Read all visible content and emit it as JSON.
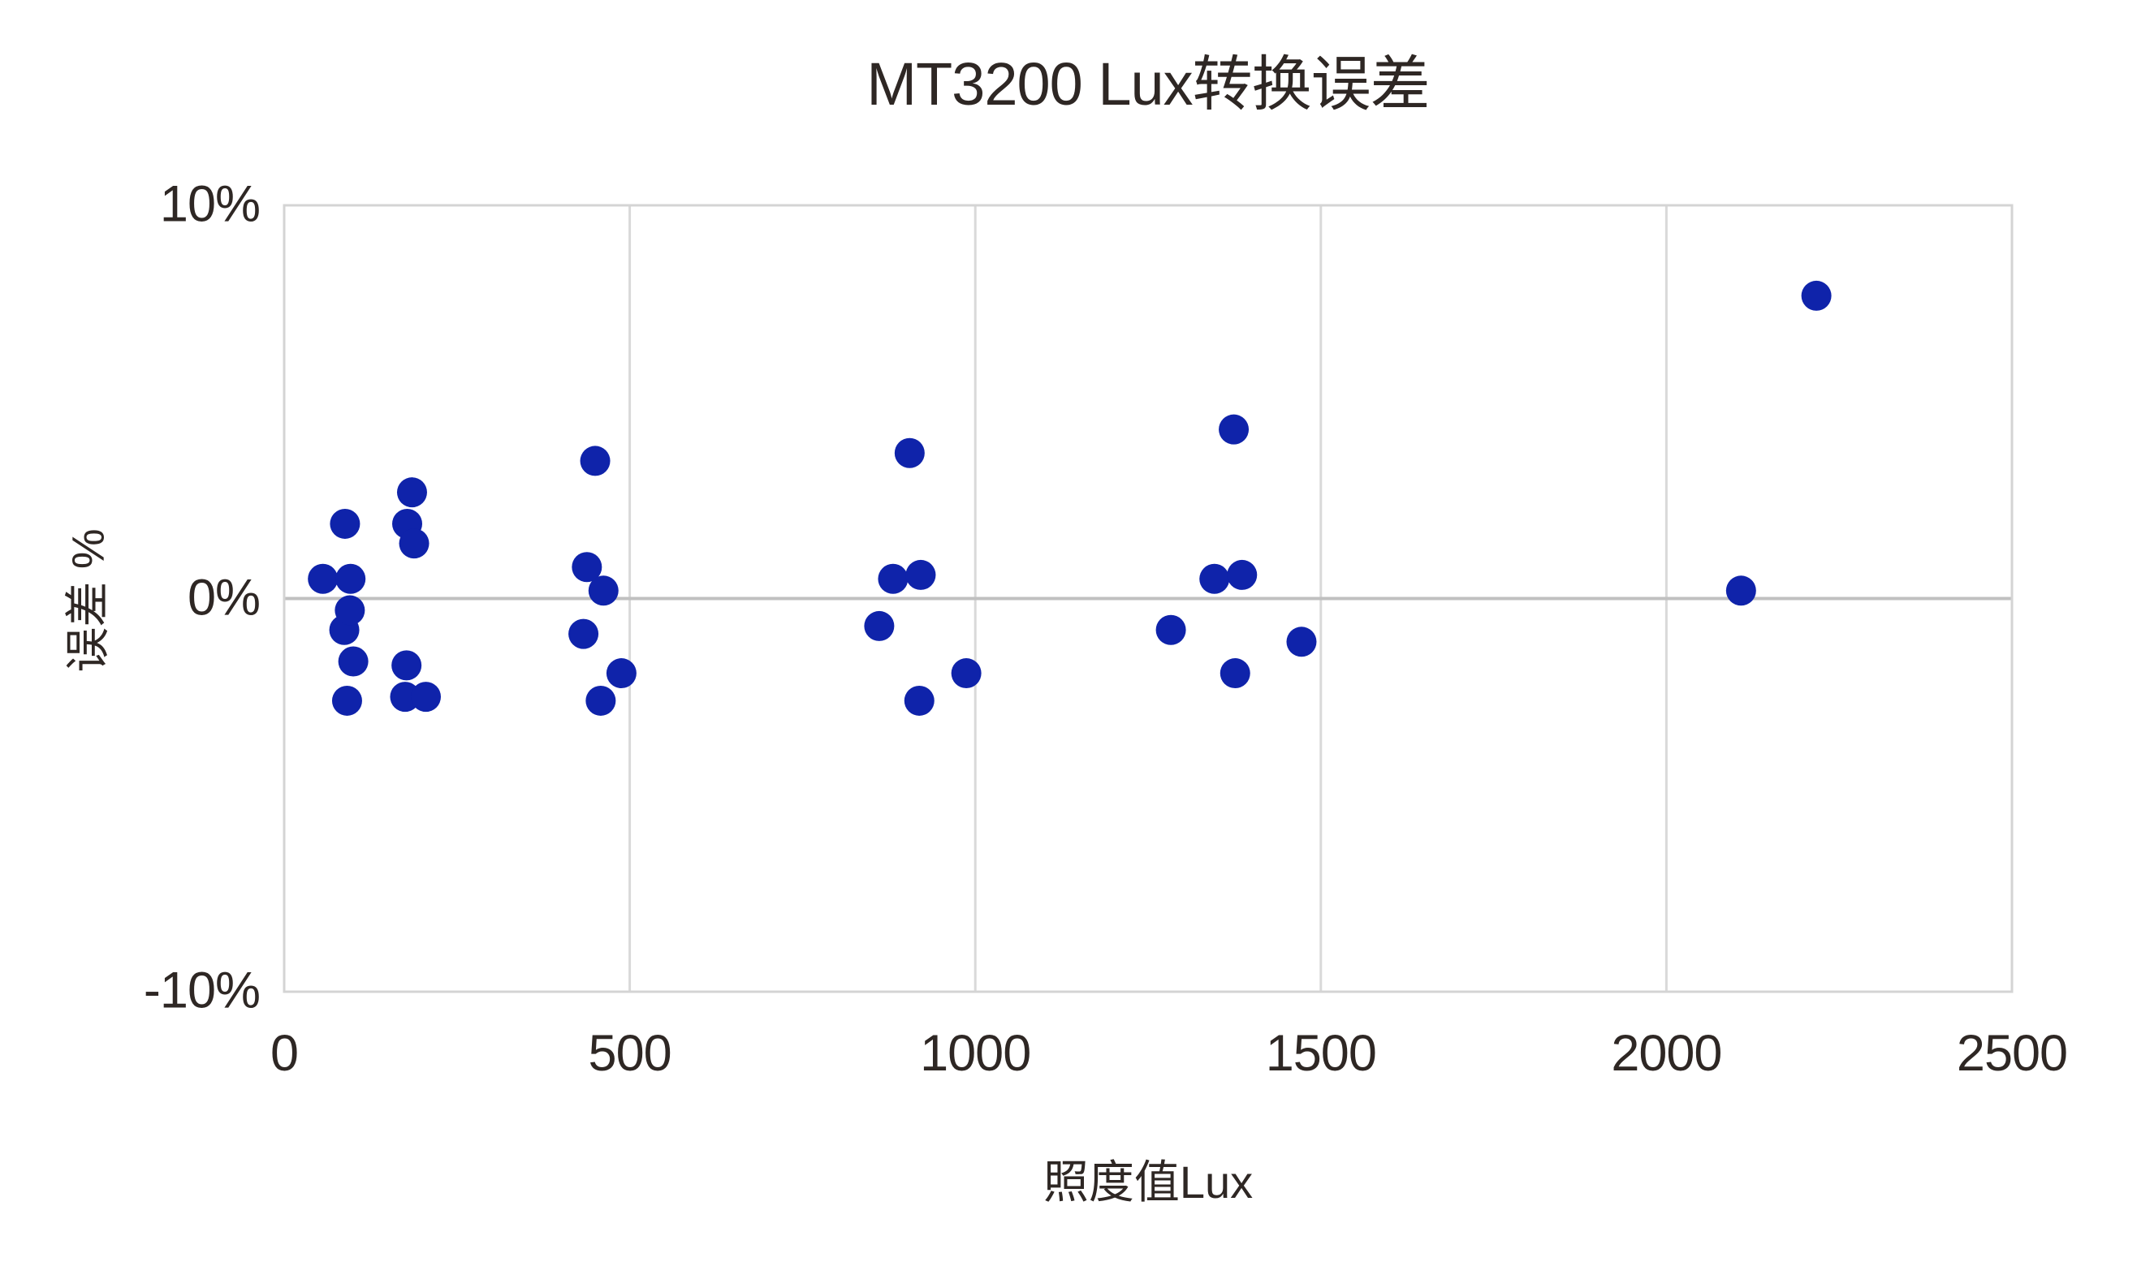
{
  "colors": {
    "text": "#2e2724",
    "grid": "#d9d9d9",
    "border": "#d4d4d4",
    "zero": "#c0c0c0",
    "point": "#0f23aa",
    "bg": "#ffffff"
  },
  "chart_data": {
    "type": "scatter",
    "title": "MT3200 Lux转换误差",
    "xlabel": "照度值Lux",
    "ylabel": "误差 %",
    "xlim": [
      0,
      2500
    ],
    "ylim": [
      -10,
      10
    ],
    "grid": {
      "x_gridlines": [
        500,
        1000,
        1500,
        2000
      ],
      "y_gridlines": [
        0
      ],
      "border": true
    },
    "x_ticks": [
      {
        "value": 0,
        "label": "0"
      },
      {
        "value": 500,
        "label": "500"
      },
      {
        "value": 1000,
        "label": "1000"
      },
      {
        "value": 1500,
        "label": "1500"
      },
      {
        "value": 2000,
        "label": "2000"
      },
      {
        "value": 2500,
        "label": "2500"
      }
    ],
    "y_ticks": [
      {
        "value": 10,
        "label": "10%"
      },
      {
        "value": 0,
        "label": "0%"
      },
      {
        "value": -10,
        "label": "-10%"
      }
    ],
    "series": [
      {
        "name": "误差 %",
        "color": "#0f23aa",
        "marker": "circle",
        "marker_radius_px": 18.5,
        "points": [
          [
            56,
            0.5
          ],
          [
            87,
            -0.8
          ],
          [
            88,
            1.9
          ],
          [
            91,
            -2.6
          ],
          [
            95,
            -0.3
          ],
          [
            96,
            0.5
          ],
          [
            100,
            -1.6
          ],
          [
            175,
            -2.5
          ],
          [
            177,
            -1.7
          ],
          [
            178,
            1.9
          ],
          [
            185,
            2.7
          ],
          [
            188,
            1.4
          ],
          [
            205,
            -2.5
          ],
          [
            433,
            -0.9
          ],
          [
            438,
            0.8
          ],
          [
            450,
            3.5
          ],
          [
            458,
            -2.6
          ],
          [
            462,
            0.2
          ],
          [
            488,
            -1.9
          ],
          [
            861,
            -0.7
          ],
          [
            881,
            0.5
          ],
          [
            905,
            3.7
          ],
          [
            919,
            -2.6
          ],
          [
            921,
            0.6
          ],
          [
            987,
            -1.9
          ],
          [
            1283,
            -0.8
          ],
          [
            1346,
            0.5
          ],
          [
            1374,
            4.3
          ],
          [
            1376,
            -1.9
          ],
          [
            1386,
            0.6
          ],
          [
            1472,
            -1.1
          ],
          [
            2108,
            0.2
          ],
          [
            2217,
            7.7
          ]
        ]
      }
    ]
  }
}
